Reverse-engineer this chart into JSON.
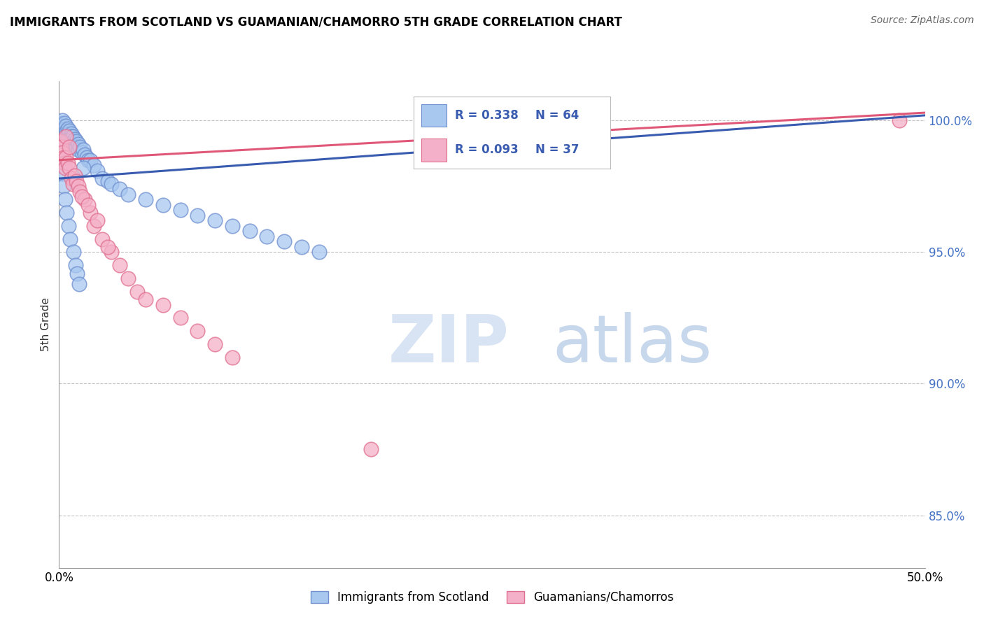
{
  "title": "IMMIGRANTS FROM SCOTLAND VS GUAMANIAN/CHAMORRO 5TH GRADE CORRELATION CHART",
  "source": "Source: ZipAtlas.com",
  "ylabel": "5th Grade",
  "xlim": [
    0,
    50
  ],
  "ylim": [
    83.0,
    101.5
  ],
  "blue_R": 0.338,
  "blue_N": 64,
  "pink_R": 0.093,
  "pink_N": 37,
  "blue_color": "#A8C8F0",
  "pink_color": "#F4B0C8",
  "blue_edge_color": "#7090D0",
  "pink_edge_color": "#E07090",
  "blue_line_color": "#3A5CB0",
  "pink_line_color": "#E05878",
  "y_ticks": [
    85.0,
    90.0,
    95.0,
    100.0
  ],
  "y_tick_labels": [
    "85.0%",
    "90.0%",
    "95.0%",
    "100.0%"
  ],
  "blue_trend": [
    97.8,
    100.2
  ],
  "pink_trend": [
    98.5,
    100.3
  ],
  "blue_scatter_x": [
    0.1,
    0.15,
    0.2,
    0.2,
    0.25,
    0.3,
    0.3,
    0.35,
    0.4,
    0.4,
    0.45,
    0.5,
    0.5,
    0.55,
    0.6,
    0.6,
    0.7,
    0.7,
    0.75,
    0.8,
    0.8,
    0.9,
    0.9,
    1.0,
    1.0,
    1.1,
    1.1,
    1.2,
    1.3,
    1.4,
    1.5,
    1.6,
    1.7,
    1.8,
    2.0,
    2.2,
    2.5,
    2.8,
    3.0,
    3.5,
    4.0,
    5.0,
    6.0,
    7.0,
    8.0,
    9.0,
    10.0,
    11.0,
    12.0,
    13.0,
    14.0,
    15.0,
    0.15,
    0.25,
    0.35,
    0.45,
    0.55,
    0.65,
    0.85,
    0.95,
    1.05,
    1.15,
    0.3,
    1.4
  ],
  "blue_scatter_y": [
    99.8,
    99.9,
    100.0,
    99.7,
    99.8,
    99.9,
    99.6,
    99.7,
    99.8,
    99.5,
    99.6,
    99.7,
    99.4,
    99.5,
    99.6,
    99.3,
    99.5,
    99.4,
    99.3,
    99.4,
    99.2,
    99.3,
    99.1,
    99.2,
    99.0,
    99.1,
    98.9,
    99.0,
    98.8,
    98.9,
    98.7,
    98.6,
    98.5,
    98.5,
    98.3,
    98.1,
    97.8,
    97.7,
    97.6,
    97.4,
    97.2,
    97.0,
    96.8,
    96.6,
    96.4,
    96.2,
    96.0,
    95.8,
    95.6,
    95.4,
    95.2,
    95.0,
    98.0,
    97.5,
    97.0,
    96.5,
    96.0,
    95.5,
    95.0,
    94.5,
    94.2,
    93.8,
    98.5,
    98.2
  ],
  "pink_scatter_x": [
    0.1,
    0.15,
    0.2,
    0.25,
    0.3,
    0.35,
    0.4,
    0.5,
    0.6,
    0.7,
    0.8,
    0.9,
    1.0,
    1.1,
    1.2,
    1.5,
    1.8,
    2.0,
    2.5,
    3.0,
    3.5,
    4.0,
    4.5,
    5.0,
    6.0,
    7.0,
    8.0,
    9.0,
    10.0,
    0.4,
    0.6,
    1.3,
    1.7,
    2.2,
    2.8,
    48.5,
    18.0
  ],
  "pink_scatter_y": [
    99.2,
    99.0,
    98.8,
    98.6,
    98.4,
    98.2,
    98.6,
    98.4,
    98.2,
    97.8,
    97.6,
    97.9,
    97.7,
    97.5,
    97.3,
    97.0,
    96.5,
    96.0,
    95.5,
    95.0,
    94.5,
    94.0,
    93.5,
    93.2,
    93.0,
    92.5,
    92.0,
    91.5,
    91.0,
    99.4,
    99.0,
    97.1,
    96.8,
    96.2,
    95.2,
    100.0,
    87.5
  ]
}
